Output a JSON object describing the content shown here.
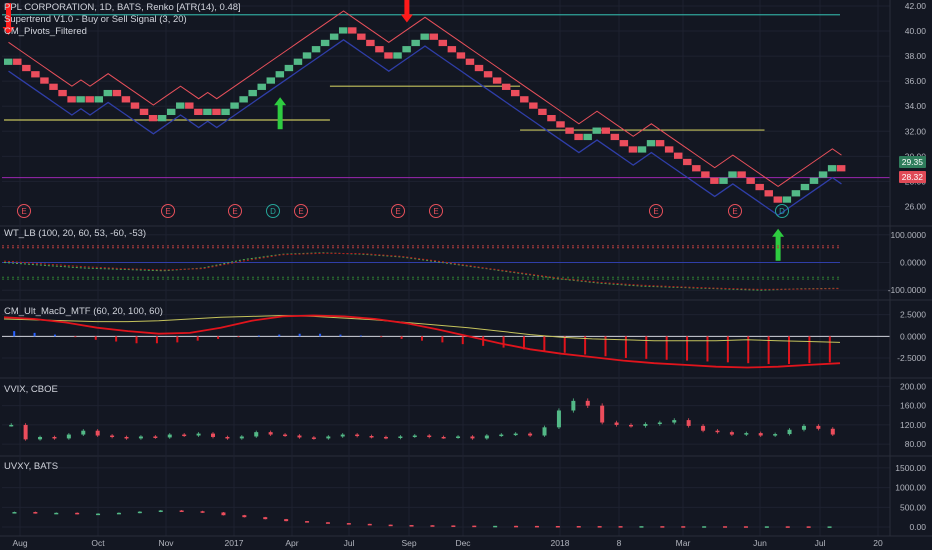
{
  "colors": {
    "background": "#131722",
    "grid": "#1e2230",
    "brick_up": "#53b987",
    "brick_down": "#eb4d5c",
    "supertrend": "#2f3ea8",
    "pivot_band": "#c5c35c",
    "resistance": "#e8505b",
    "teal_line": "#2fa39a",
    "purple_line": "#9c27b0",
    "macd_pos": "#2962ff",
    "macd_neg": "#e0141c",
    "signal_up": "#2ecc40",
    "signal_down": "#ff1a1a"
  },
  "legend": {
    "main_1": "PPL CORPORATION, 1D, BATS, Renko [ATR(14), 0.48]",
    "main_2": "Supertrend V1.0 - Buy or Sell Signal (3, 20)",
    "main_3": "CM_Pivots_Filtered",
    "wt": "WT_LB (100, 20, 60, 53, -60, -53)",
    "macd": "CM_Ult_MacD_MTF (60, 20, 100, 60)",
    "vvix": "VVIX, CBOE",
    "uvxy": "UVXY, BATS"
  },
  "price_tags": {
    "last": "29.35",
    "prev": "28.32"
  },
  "time_axis": [
    "Aug",
    "Oct",
    "Nov",
    "2017",
    "Apr",
    "Jul",
    "Sep",
    "Dec",
    "2018",
    "8",
    "Mar",
    "Jun",
    "Jul",
    "20"
  ],
  "event_markers": [
    "E",
    "E",
    "E",
    "D",
    "E",
    "E",
    "E",
    "E",
    "E",
    "D"
  ],
  "chart_data": [
    {
      "type": "line",
      "title": "PPL CORPORATION, 1D, BATS, Renko [ATR(14), 0.48]",
      "renko_bricks_close": [
        37.8,
        37.3,
        36.8,
        36.3,
        35.8,
        35.3,
        34.8,
        34.3,
        34.8,
        34.3,
        34.8,
        35.3,
        34.8,
        34.3,
        33.8,
        33.3,
        32.8,
        33.3,
        33.8,
        34.3,
        33.8,
        33.3,
        33.8,
        33.3,
        33.8,
        34.3,
        34.8,
        35.3,
        35.8,
        36.3,
        36.8,
        37.3,
        37.8,
        38.3,
        38.8,
        39.3,
        39.8,
        40.3,
        39.8,
        39.3,
        38.8,
        38.3,
        37.8,
        38.3,
        38.8,
        39.3,
        39.8,
        39.3,
        38.8,
        38.3,
        37.8,
        37.3,
        36.8,
        36.3,
        35.8,
        35.3,
        34.8,
        34.3,
        33.8,
        33.3,
        32.8,
        32.3,
        31.8,
        31.3,
        31.8,
        32.3,
        31.8,
        31.3,
        30.8,
        30.3,
        30.8,
        31.3,
        30.8,
        30.3,
        29.8,
        29.3,
        28.8,
        28.3,
        27.8,
        28.3,
        28.8,
        28.3,
        27.8,
        27.3,
        26.8,
        26.3,
        26.8,
        27.3,
        27.8,
        28.3,
        28.8,
        29.3,
        28.8
      ],
      "ylim": [
        25,
        42
      ],
      "y_ticks": [
        "42.00",
        "40.00",
        "38.00",
        "36.00",
        "34.00",
        "32.00",
        "30.00",
        "28.00",
        "26.00"
      ],
      "horizontal_lines": [
        41.3,
        28.3
      ],
      "pivot_levels": [
        {
          "from": 0,
          "to": 36,
          "y": 32.9
        },
        {
          "from": 36,
          "to": 57,
          "y": 35.6
        },
        {
          "from": 57,
          "to": 84,
          "y": 32.1
        }
      ],
      "sell_signals": [
        0,
        44
      ],
      "buy_signals": [
        30,
        85
      ]
    },
    {
      "type": "line",
      "title": "WT_LB (100, 20, 60, 53, -60, -53)",
      "y_ticks": [
        "100.0000",
        "0.0000",
        "-100.0000"
      ],
      "ylim": [
        -110,
        110
      ],
      "levels": [
        60,
        53,
        0,
        -53,
        -60
      ],
      "wt1": [
        0,
        -10,
        -20,
        -25,
        -30,
        -20,
        10,
        30,
        35,
        30,
        20,
        0,
        -20,
        -40,
        -60,
        -75,
        -85,
        -90,
        -95,
        -100,
        -95,
        -93
      ],
      "wt2": [
        5,
        -5,
        -15,
        -22,
        -27,
        -22,
        5,
        28,
        33,
        32,
        22,
        3,
        -18,
        -38,
        -58,
        -72,
        -82,
        -88,
        -93,
        -97,
        -96,
        -94
      ]
    },
    {
      "type": "bar",
      "title": "CM_Ult_MacD_MTF (60, 20, 100, 60)",
      "y_ticks": [
        "2.5000",
        "0.0000",
        "-2.5000"
      ],
      "ylim": [
        -4,
        3.5
      ],
      "histogram": [
        0.6,
        0.4,
        0.2,
        -0.1,
        -0.4,
        -0.6,
        -0.8,
        -0.8,
        -0.7,
        -0.5,
        -0.3,
        -0.1,
        0.1,
        0.2,
        0.3,
        0.3,
        0.2,
        0.1,
        -0.1,
        -0.3,
        -0.5,
        -0.7,
        -0.9,
        -1.1,
        -1.3,
        -1.5,
        -1.7,
        -1.9,
        -2.1,
        -2.3,
        -2.5,
        -2.6,
        -2.7,
        -2.8,
        -2.9,
        -3.0,
        -3.1,
        -3.2,
        -3.2,
        -3.1,
        -3.0
      ],
      "macd_line": [
        2.2,
        2.0,
        1.6,
        1.0,
        0.6,
        0.3,
        0.4,
        1.0,
        1.8,
        2.3,
        2.4,
        2.3,
        2.0,
        1.5,
        0.8,
        0.0,
        -0.8,
        -1.5,
        -2.0,
        -2.4,
        -2.8,
        -3.1,
        -3.3,
        -3.5,
        -3.6,
        -3.5,
        -3.3,
        -3.1
      ],
      "signal_line": [
        2.0,
        1.9,
        1.8,
        1.7,
        1.7,
        1.8,
        2.0,
        2.2,
        2.3,
        2.4,
        2.3,
        2.1,
        1.9,
        1.6,
        1.3,
        1.0,
        0.6,
        0.2,
        -0.1,
        -0.3,
        -0.4,
        -0.5,
        -0.5,
        -0.5,
        -0.4,
        -0.5,
        -0.6,
        -0.7
      ]
    },
    {
      "type": "bar",
      "title": "VVIX, CBOE",
      "y_ticks": [
        "200.00",
        "160.00",
        "120.00",
        "80.00"
      ],
      "ylim": [
        70,
        205
      ],
      "candles": [
        120,
        90,
        95,
        92,
        100,
        108,
        98,
        95,
        92,
        96,
        94,
        100,
        98,
        102,
        95,
        92,
        96,
        105,
        100,
        98,
        94,
        92,
        96,
        100,
        97,
        95,
        93,
        96,
        98,
        95,
        94,
        96,
        92,
        98,
        100,
        102,
        98,
        115,
        150,
        170,
        160,
        125,
        120,
        118,
        122,
        125,
        130,
        118,
        108,
        105,
        100,
        103,
        98,
        101,
        110,
        118,
        112,
        100
      ]
    },
    {
      "type": "bar",
      "title": "UVXY, BATS",
      "y_ticks": [
        "1500.00",
        "1000.00",
        "500.00",
        "0.00"
      ],
      "ylim": [
        -50,
        1650
      ],
      "candles": [
        380,
        350,
        360,
        330,
        340,
        360,
        390,
        420,
        400,
        370,
        300,
        250,
        200,
        150,
        120,
        100,
        80,
        60,
        50,
        45,
        40,
        35,
        30,
        30,
        28,
        26,
        25,
        24,
        23,
        22,
        22,
        21,
        20,
        20,
        19,
        18,
        18,
        17,
        16,
        16
      ]
    }
  ]
}
